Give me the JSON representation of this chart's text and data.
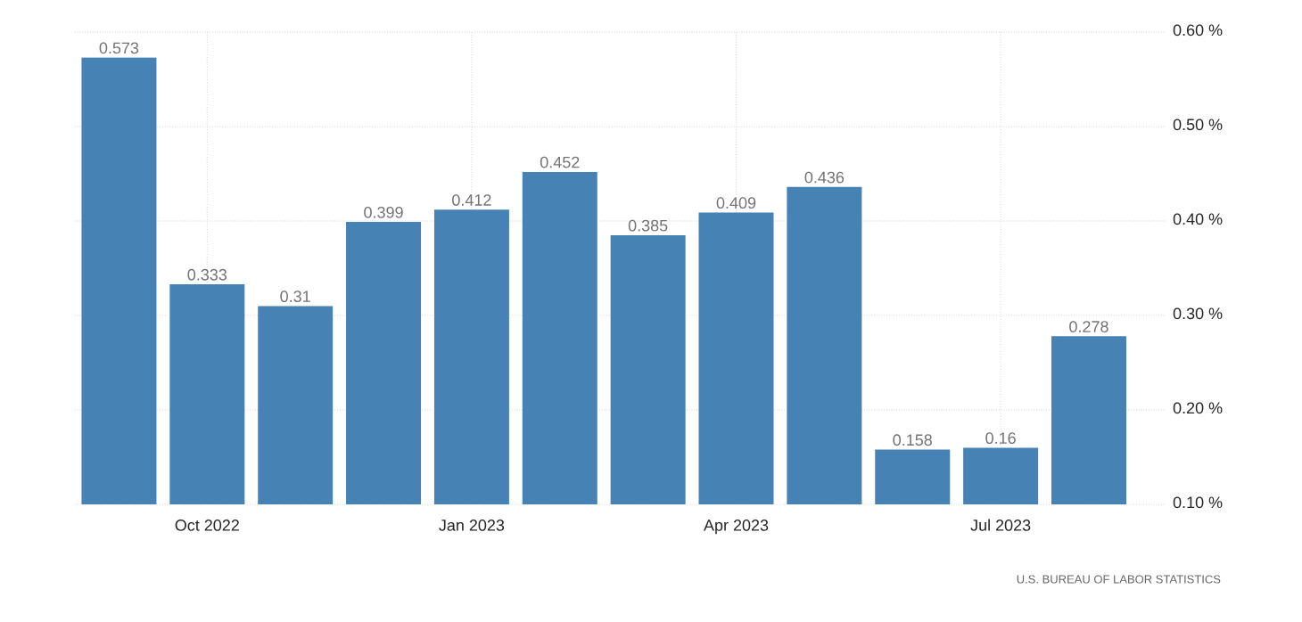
{
  "chart_data": {
    "type": "bar",
    "categories": [
      null,
      "Oct 2022",
      null,
      null,
      "Jan 2023",
      null,
      null,
      "Apr 2023",
      null,
      null,
      "Jul 2023",
      null
    ],
    "values": [
      0.573,
      0.333,
      0.31,
      0.399,
      0.412,
      0.452,
      0.385,
      0.409,
      0.436,
      0.158,
      0.16,
      0.278
    ],
    "color": "#4682b4",
    "data_labels": true,
    "ylim": [
      0.1,
      0.6
    ],
    "yticks": [
      {
        "value": 0.1,
        "label": "0.10 %"
      },
      {
        "value": 0.2,
        "label": "0.20 %"
      },
      {
        "value": 0.3,
        "label": "0.30 %"
      },
      {
        "value": 0.4,
        "label": "0.40 %"
      },
      {
        "value": 0.5,
        "label": "0.50 %"
      },
      {
        "value": 0.6,
        "label": "0.60 %"
      }
    ],
    "grid": true,
    "annotations": [
      "U.S. BUREAU OF LABOR STATISTICS"
    ]
  }
}
